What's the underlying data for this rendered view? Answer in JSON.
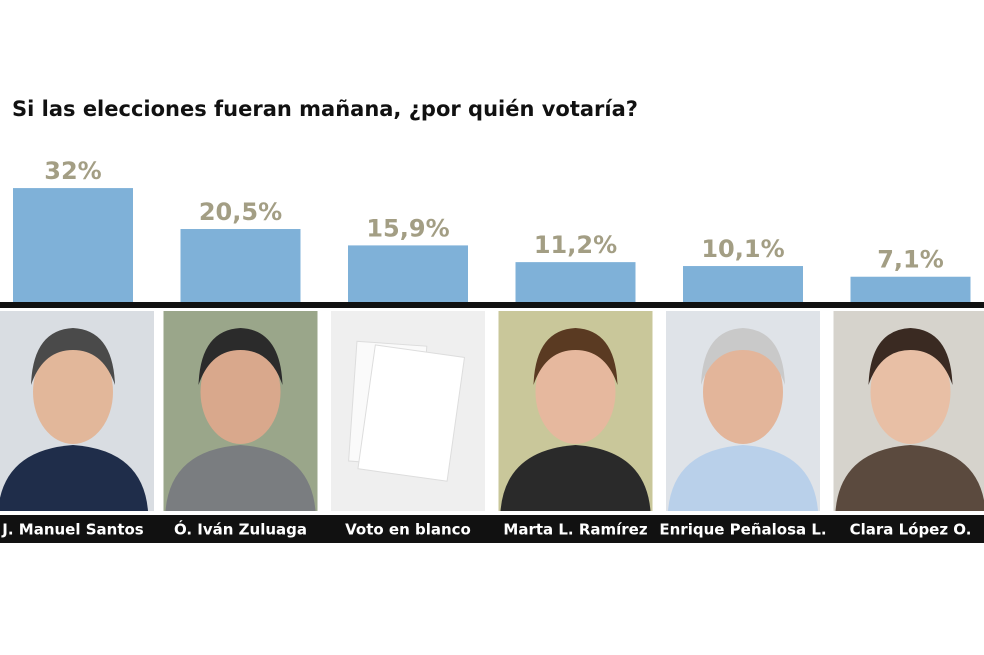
{
  "chart_data": {
    "type": "bar",
    "title": "Si las elecciones fueran mañana, ¿por quién votaría?",
    "categories": [
      "J. Manuel Santos",
      "Ó. Iván Zuluaga",
      "Voto en blanco",
      "Marta L. Ramírez",
      "Enrique Peñalosa L.",
      "Clara López O."
    ],
    "values": [
      32,
      20.5,
      15.9,
      11.2,
      10.1,
      7.1
    ],
    "value_labels": [
      "32%",
      "20,5%",
      "15,9%",
      "11,2%",
      "10,1%",
      "7,1%"
    ],
    "color": "#7fb1d8"
  }
}
